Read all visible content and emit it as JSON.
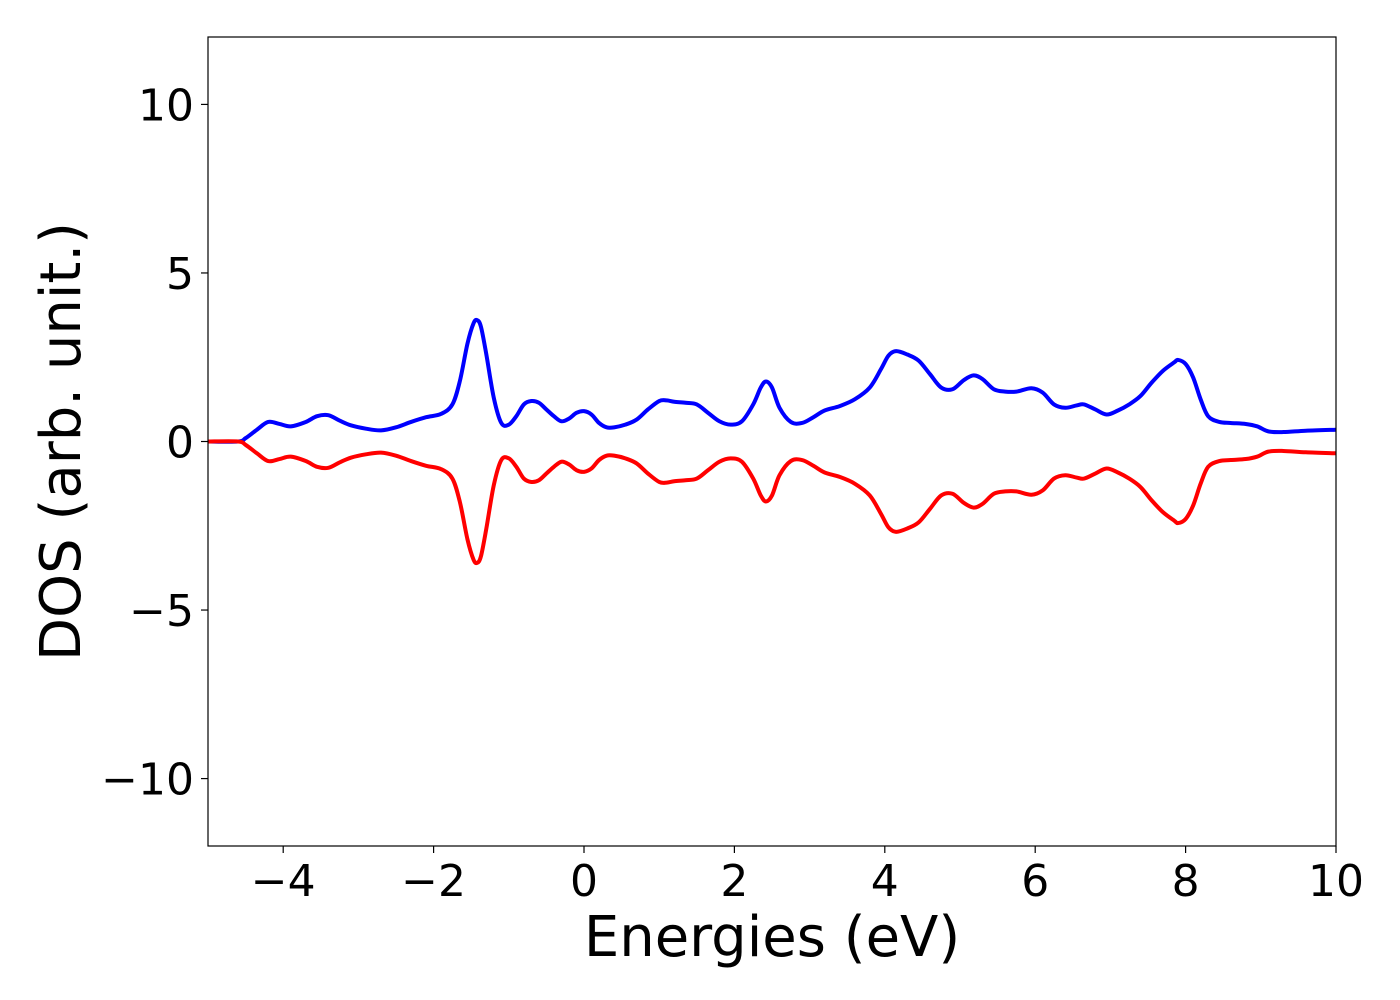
{
  "chart_data": {
    "type": "line",
    "title": "",
    "xlabel": "Energies (eV)",
    "ylabel": "DOS (arb. unit.)",
    "xlim": [
      -5,
      10
    ],
    "ylim": [
      -12,
      12
    ],
    "x_ticks": [
      -4,
      -2,
      0,
      2,
      4,
      6,
      8,
      10
    ],
    "x_tick_labels": [
      "−4",
      "−2",
      "0",
      "2",
      "4",
      "6",
      "8",
      "10"
    ],
    "y_ticks": [
      -10,
      -5,
      0,
      5,
      10
    ],
    "y_tick_labels": [
      "−10",
      "−5",
      "0",
      "5",
      "10"
    ],
    "grid": false,
    "legend": "none",
    "series": [
      {
        "color": "#0000ff",
        "x": [
          -5.0,
          -4.6,
          -4.5,
          -4.35,
          -4.2,
          -4.05,
          -3.9,
          -3.7,
          -3.55,
          -3.4,
          -3.25,
          -3.1,
          -2.9,
          -2.7,
          -2.5,
          -2.3,
          -2.1,
          -1.9,
          -1.75,
          -1.65,
          -1.55,
          -1.47,
          -1.42,
          -1.37,
          -1.3,
          -1.2,
          -1.1,
          -1.0,
          -0.9,
          -0.8,
          -0.7,
          -0.6,
          -0.5,
          -0.4,
          -0.3,
          -0.2,
          -0.1,
          0.0,
          0.1,
          0.2,
          0.3,
          0.4,
          0.55,
          0.7,
          0.85,
          1.0,
          1.1,
          1.2,
          1.35,
          1.5,
          1.65,
          1.8,
          1.95,
          2.1,
          2.25,
          2.35,
          2.42,
          2.5,
          2.6,
          2.75,
          2.9,
          3.05,
          3.2,
          3.4,
          3.6,
          3.8,
          3.95,
          4.05,
          4.15,
          4.3,
          4.45,
          4.6,
          4.75,
          4.9,
          5.05,
          5.18,
          5.3,
          5.45,
          5.6,
          5.75,
          5.95,
          6.1,
          6.25,
          6.4,
          6.55,
          6.65,
          6.8,
          6.95,
          7.1,
          7.25,
          7.4,
          7.55,
          7.7,
          7.85,
          7.9,
          8.0,
          8.1,
          8.2,
          8.3,
          8.45,
          8.6,
          8.8,
          8.95,
          9.1,
          9.3,
          9.6,
          10.0
        ],
        "y": [
          0.0,
          0.0,
          0.1,
          0.35,
          0.58,
          0.52,
          0.45,
          0.58,
          0.75,
          0.78,
          0.62,
          0.48,
          0.38,
          0.33,
          0.42,
          0.58,
          0.72,
          0.82,
          1.1,
          1.8,
          2.9,
          3.5,
          3.6,
          3.4,
          2.6,
          1.3,
          0.55,
          0.5,
          0.75,
          1.1,
          1.2,
          1.15,
          0.95,
          0.75,
          0.6,
          0.68,
          0.85,
          0.9,
          0.8,
          0.55,
          0.42,
          0.42,
          0.5,
          0.65,
          0.95,
          1.2,
          1.22,
          1.18,
          1.15,
          1.1,
          0.85,
          0.6,
          0.5,
          0.6,
          1.1,
          1.6,
          1.78,
          1.6,
          1.0,
          0.58,
          0.55,
          0.72,
          0.92,
          1.05,
          1.25,
          1.6,
          2.15,
          2.55,
          2.68,
          2.58,
          2.4,
          2.0,
          1.6,
          1.55,
          1.82,
          1.96,
          1.85,
          1.55,
          1.48,
          1.48,
          1.58,
          1.45,
          1.1,
          1.0,
          1.07,
          1.1,
          0.95,
          0.8,
          0.92,
          1.1,
          1.35,
          1.75,
          2.1,
          2.35,
          2.42,
          2.3,
          1.9,
          1.25,
          0.75,
          0.58,
          0.55,
          0.52,
          0.45,
          0.3,
          0.28,
          0.32,
          0.35
        ]
      },
      {
        "color": "#ff0000",
        "x": [
          -5.0,
          -4.6,
          -4.5,
          -4.35,
          -4.2,
          -4.05,
          -3.9,
          -3.7,
          -3.55,
          -3.4,
          -3.25,
          -3.1,
          -2.9,
          -2.7,
          -2.5,
          -2.3,
          -2.1,
          -1.9,
          -1.75,
          -1.65,
          -1.55,
          -1.47,
          -1.42,
          -1.37,
          -1.3,
          -1.2,
          -1.1,
          -1.0,
          -0.9,
          -0.8,
          -0.7,
          -0.6,
          -0.5,
          -0.4,
          -0.3,
          -0.2,
          -0.1,
          0.0,
          0.1,
          0.2,
          0.3,
          0.4,
          0.55,
          0.7,
          0.85,
          1.0,
          1.1,
          1.2,
          1.35,
          1.5,
          1.65,
          1.8,
          1.95,
          2.1,
          2.25,
          2.35,
          2.42,
          2.5,
          2.6,
          2.75,
          2.9,
          3.05,
          3.2,
          3.4,
          3.6,
          3.8,
          3.95,
          4.05,
          4.15,
          4.3,
          4.45,
          4.6,
          4.75,
          4.9,
          5.05,
          5.18,
          5.3,
          5.45,
          5.6,
          5.75,
          5.95,
          6.1,
          6.25,
          6.4,
          6.55,
          6.65,
          6.8,
          6.95,
          7.1,
          7.25,
          7.4,
          7.55,
          7.7,
          7.85,
          7.9,
          8.0,
          8.1,
          8.2,
          8.3,
          8.45,
          8.6,
          8.8,
          8.95,
          9.1,
          9.3,
          9.6,
          10.0
        ],
        "y": [
          0.0,
          0.0,
          -0.1,
          -0.35,
          -0.58,
          -0.52,
          -0.45,
          -0.58,
          -0.75,
          -0.78,
          -0.62,
          -0.48,
          -0.38,
          -0.33,
          -0.42,
          -0.58,
          -0.72,
          -0.82,
          -1.1,
          -1.8,
          -2.9,
          -3.5,
          -3.6,
          -3.4,
          -2.6,
          -1.3,
          -0.55,
          -0.5,
          -0.75,
          -1.1,
          -1.2,
          -1.15,
          -0.95,
          -0.75,
          -0.6,
          -0.68,
          -0.85,
          -0.9,
          -0.8,
          -0.55,
          -0.42,
          -0.42,
          -0.5,
          -0.65,
          -0.95,
          -1.2,
          -1.22,
          -1.18,
          -1.15,
          -1.1,
          -0.85,
          -0.6,
          -0.5,
          -0.6,
          -1.1,
          -1.6,
          -1.78,
          -1.6,
          -1.0,
          -0.58,
          -0.55,
          -0.72,
          -0.92,
          -1.05,
          -1.25,
          -1.6,
          -2.15,
          -2.55,
          -2.68,
          -2.58,
          -2.4,
          -2.0,
          -1.6,
          -1.55,
          -1.82,
          -1.96,
          -1.85,
          -1.55,
          -1.48,
          -1.48,
          -1.58,
          -1.45,
          -1.1,
          -1.0,
          -1.07,
          -1.1,
          -0.95,
          -0.8,
          -0.92,
          -1.1,
          -1.35,
          -1.75,
          -2.1,
          -2.35,
          -2.42,
          -2.3,
          -1.9,
          -1.25,
          -0.75,
          -0.58,
          -0.55,
          -0.52,
          -0.45,
          -0.3,
          -0.28,
          -0.32,
          -0.35
        ]
      }
    ]
  }
}
